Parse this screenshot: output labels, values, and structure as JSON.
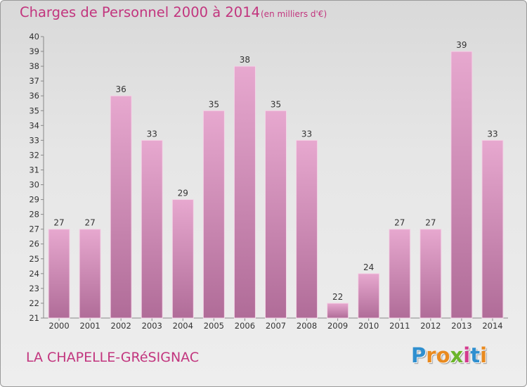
{
  "chart_data": {
    "type": "bar",
    "title": "Charges de Personnel 2000 à 2014",
    "subtitle": "(en milliers d'€)",
    "categories": [
      "2000",
      "2001",
      "2002",
      "2003",
      "2004",
      "2005",
      "2006",
      "2007",
      "2008",
      "2009",
      "2010",
      "2011",
      "2012",
      "2013",
      "2014"
    ],
    "values": [
      27,
      27,
      36,
      33,
      29,
      35,
      38,
      35,
      33,
      22,
      24,
      27,
      27,
      39,
      33
    ],
    "ylim": [
      21,
      40
    ],
    "yticks": [
      21,
      22,
      23,
      24,
      25,
      26,
      27,
      28,
      29,
      30,
      31,
      32,
      33,
      34,
      35,
      36,
      37,
      38,
      39,
      40
    ],
    "grid": false,
    "colors": {
      "bar_light": "#e7a8cf",
      "bar_dark": "#b06c98",
      "bar_edge": "#f3d4e6",
      "text": "#c2357e"
    }
  },
  "footer": {
    "commune": "LA CHAPELLE-GRéSIGNAC",
    "logo_letters": [
      "P",
      "r",
      "o",
      "x",
      "i",
      "t",
      "i"
    ],
    "logo_colors": [
      "#2f8fcf",
      "#e98a1f",
      "#e98a1f",
      "#6bb52a",
      "#d43b8f",
      "#2f8fcf",
      "#e98a1f"
    ]
  }
}
